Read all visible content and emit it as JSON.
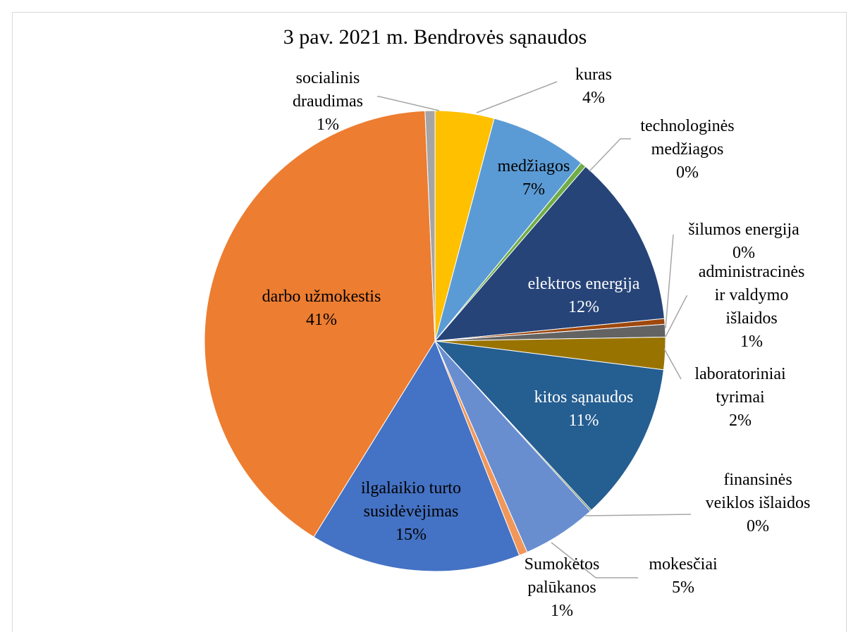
{
  "chart_data": {
    "type": "pie",
    "title": "3 pav. 2021 m. Bendrovės sąnaudos",
    "legend": "none",
    "slices": [
      {
        "label_lines": [
          "kuras",
          "4%"
        ],
        "value": 4.2,
        "color": "#FFC000"
      },
      {
        "label_lines": [
          "medžiagos",
          "7%"
        ],
        "value": 6.9,
        "color": "#5B9BD5"
      },
      {
        "label_lines": [
          "technologinės",
          "medžiagos",
          "0%"
        ],
        "value": 0.4,
        "color": "#70AD47"
      },
      {
        "label_lines": [
          "elektros energija",
          "12%"
        ],
        "value": 12.3,
        "color": "#264478"
      },
      {
        "label_lines": [
          "šilumos energija",
          "0%"
        ],
        "value": 0.4,
        "color": "#9E480E"
      },
      {
        "label_lines": [
          "administracinės",
          "ir valdymo",
          "išlaidos",
          "1%"
        ],
        "value": 0.9,
        "color": "#636363"
      },
      {
        "label_lines": [
          "laboratoriniai",
          "tyrimai",
          "2%"
        ],
        "value": 2.3,
        "color": "#997300"
      },
      {
        "label_lines": [
          "kitos sąnaudos",
          "11%"
        ],
        "value": 11.3,
        "color": "#255E91"
      },
      {
        "label_lines": [
          "finansinės",
          "veiklos išlaidos",
          "0%"
        ],
        "value": 0.1,
        "color": "#43682B"
      },
      {
        "label_lines": [
          "mokesčiai",
          "5%"
        ],
        "value": 5.3,
        "color": "#698ED0"
      },
      {
        "label_lines": [
          "Sumokėtos",
          "palūkanos",
          "1%"
        ],
        "value": 0.6,
        "color": "#F1975A"
      },
      {
        "label_lines": [
          "ilgalaikio turto",
          "susidėvėjimas",
          "15%"
        ],
        "value": 15.0,
        "color": "#4472C4"
      },
      {
        "label_lines": [
          "darbo užmokestis",
          "41%"
        ],
        "value": 41.1,
        "color": "#ED7D31"
      },
      {
        "label_lines": [
          "socialinis",
          "draudimas",
          "1%"
        ],
        "value": 0.7,
        "color": "#A5A5A5"
      }
    ]
  }
}
